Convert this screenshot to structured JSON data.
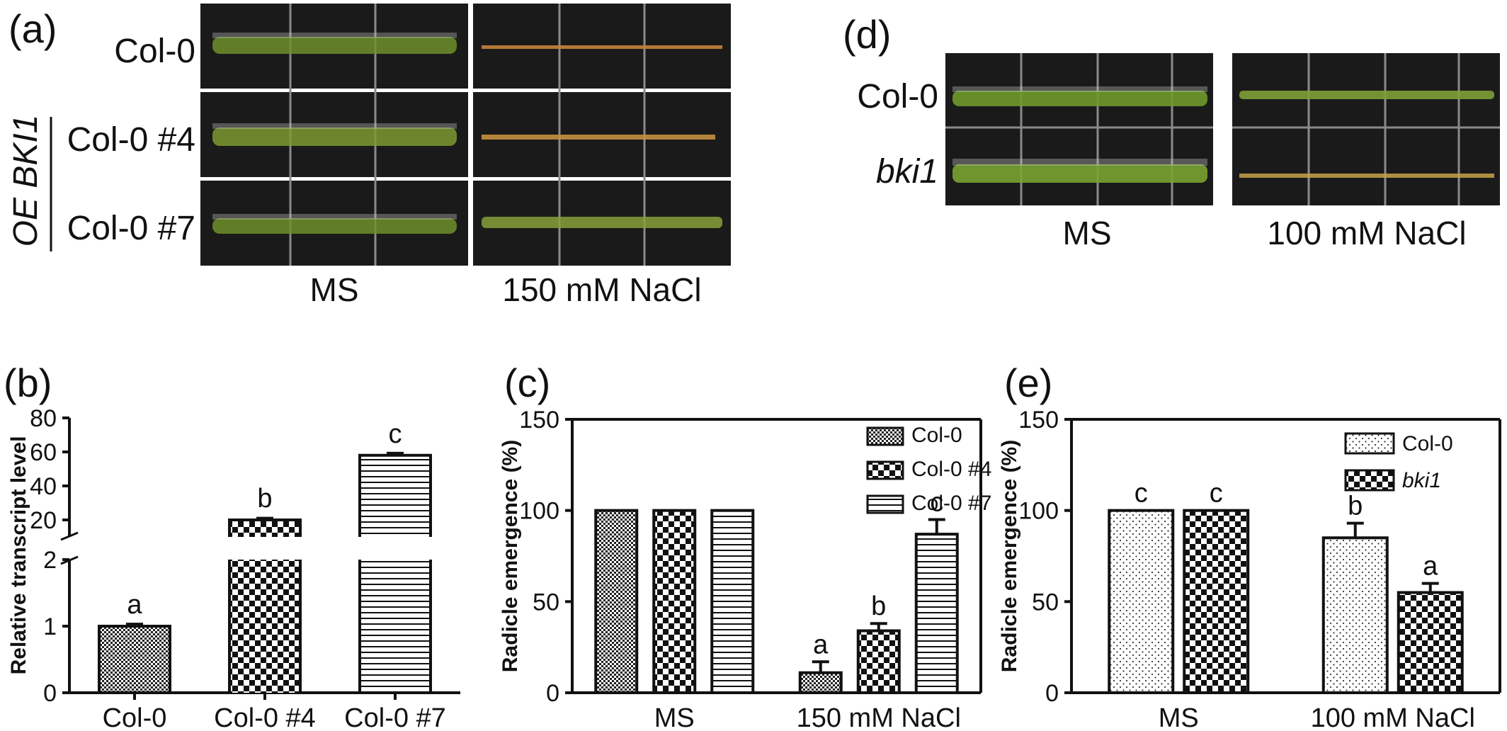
{
  "panels": {
    "a": {
      "letter": "(a)",
      "rows": [
        "Col-0",
        "Col-0 #4",
        "Col-0 #7"
      ],
      "group_label": "OE BKI1",
      "conditions": [
        "MS",
        "150 mM NaCl"
      ]
    },
    "d": {
      "letter": "(d)",
      "rows": [
        "Col-0",
        "bki1"
      ],
      "conditions": [
        "MS",
        "100 mM NaCl"
      ]
    }
  },
  "chart_data": [
    {
      "panel": "(b)",
      "type": "bar",
      "ylabel": "Relative transcript level",
      "xlabel": "",
      "categories": [
        "Col-0",
        "Col-0 #4",
        "Col-0 #7"
      ],
      "values": [
        1.0,
        20,
        58
      ],
      "errors": [
        0.03,
        1.0,
        1.2
      ],
      "letters": [
        "a",
        "b",
        "c"
      ],
      "patterns": [
        "fine-check",
        "checker",
        "hstripe"
      ],
      "y_axis": {
        "broken": true,
        "lower": {
          "range": [
            0,
            2
          ],
          "ticks": [
            0,
            1,
            2
          ]
        },
        "upper": {
          "range": [
            10,
            80
          ],
          "ticks": [
            20,
            40,
            60,
            80
          ]
        }
      }
    },
    {
      "panel": "(c)",
      "type": "bar",
      "ylabel": "Radicle emergence (%)",
      "xlabel": "",
      "categories": [
        "MS",
        "150 mM NaCl"
      ],
      "ylim": [
        0,
        150
      ],
      "yticks": [
        0,
        50,
        100,
        150
      ],
      "legend_position": "top-right",
      "series": [
        {
          "name": "Col-0",
          "pattern": "fine-check",
          "values": [
            100,
            11
          ],
          "errors": [
            0,
            6
          ],
          "letters": [
            "",
            "a"
          ]
        },
        {
          "name": "Col-0 #4",
          "pattern": "checker",
          "values": [
            100,
            34
          ],
          "errors": [
            0,
            4
          ],
          "letters": [
            "",
            "b"
          ]
        },
        {
          "name": "Col-0 #7",
          "pattern": "hstripe",
          "values": [
            100,
            87
          ],
          "errors": [
            0,
            8
          ],
          "letters": [
            "",
            "c"
          ]
        }
      ]
    },
    {
      "panel": "(e)",
      "type": "bar",
      "ylabel": "Radicle emergence (%)",
      "xlabel": "",
      "categories": [
        "MS",
        "100 mM NaCl"
      ],
      "ylim": [
        0,
        150
      ],
      "yticks": [
        0,
        50,
        100,
        150
      ],
      "legend_position": "top-right",
      "series": [
        {
          "name": "Col-0",
          "pattern": "dots",
          "values": [
            100,
            85
          ],
          "errors": [
            0,
            8
          ],
          "letters": [
            "c",
            "b"
          ]
        },
        {
          "name": "bki1",
          "pattern": "checker",
          "values": [
            100,
            55
          ],
          "errors": [
            0,
            5
          ],
          "letters": [
            "c",
            "a"
          ]
        }
      ]
    }
  ]
}
